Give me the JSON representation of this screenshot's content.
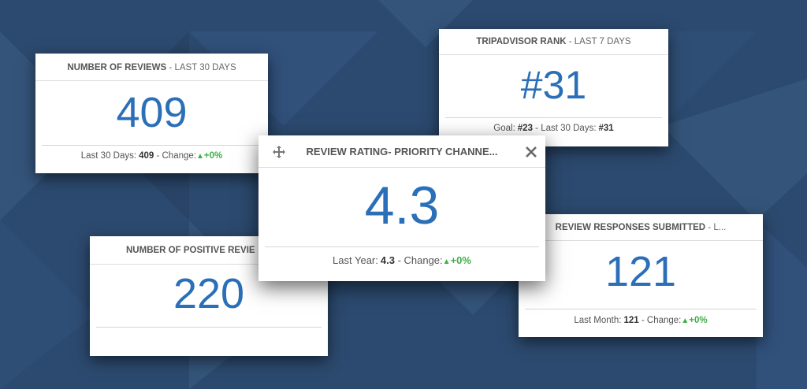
{
  "widgets": [
    {
      "title": "NUMBER OF REVIEWS",
      "period": "- LAST 30 DAYS",
      "value": "409",
      "footer": {
        "label": "Last 30 Days:",
        "value": "409",
        "change_label": "- Change:",
        "change": "+0%"
      }
    },
    {
      "title": "TRIPADVISOR RANK",
      "period": "- LAST 7 DAYS",
      "value": "#31",
      "footer": {
        "label": "Goal:",
        "value": "#23",
        "label2": "- Last 30 Days:",
        "value2": "#31"
      }
    },
    {
      "title": "NUMBER OF POSITIVE REVIE",
      "value": "220"
    },
    {
      "title": "REVIEW RESPONSES SUBMITTED",
      "period": "- L...",
      "value": "121",
      "footer": {
        "label": "Last Month:",
        "value": "121",
        "change_label": "- Change:",
        "change": "+0%"
      }
    },
    {
      "title": "REVIEW RATING- PRIORITY CHANNE...",
      "value": "4.3",
      "footer": {
        "label": "Last Year:",
        "value": "4.3",
        "change_label": "- Change:",
        "change": "+0%"
      }
    }
  ]
}
